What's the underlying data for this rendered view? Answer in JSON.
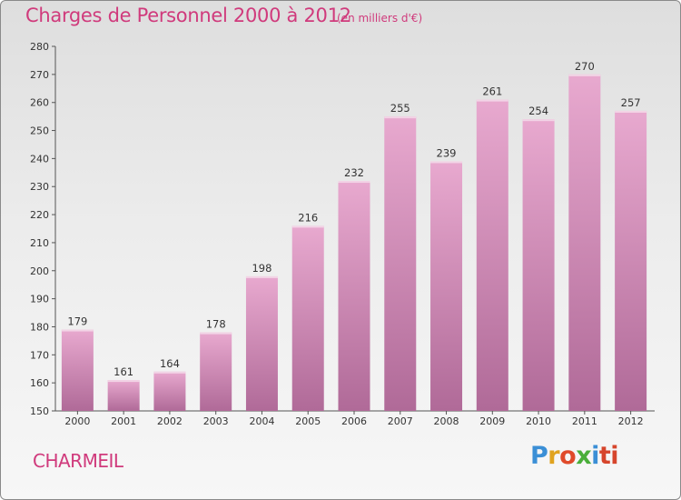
{
  "header": {
    "title": "Charges de Personnel 2000 à 2012",
    "subtitle": "(en milliers d'€)"
  },
  "footer": {
    "commune": "CHARMEIL",
    "logo": [
      "P",
      "r",
      "o",
      "x",
      "i",
      "ti"
    ]
  },
  "colors": {
    "accent": "#d03a7c",
    "bar_top": "#e8a9cf",
    "bar_bottom": "#b06a98",
    "bar_side": "#f2d4e6"
  },
  "chart_data": {
    "type": "bar",
    "title": "Charges de Personnel 2000 à 2012",
    "subtitle": "(en milliers d'€)",
    "xlabel": "",
    "ylabel": "",
    "categories": [
      "2000",
      "2001",
      "2002",
      "2003",
      "2004",
      "2005",
      "2006",
      "2007",
      "2008",
      "2009",
      "2010",
      "2011",
      "2012"
    ],
    "values": [
      179,
      161,
      164,
      178,
      198,
      216,
      232,
      255,
      239,
      261,
      254,
      270,
      257
    ],
    "ylim": [
      150,
      280
    ],
    "yticks": [
      150,
      160,
      170,
      180,
      190,
      200,
      210,
      220,
      230,
      240,
      250,
      260,
      270,
      280
    ],
    "grid": false,
    "data_labels": true
  }
}
